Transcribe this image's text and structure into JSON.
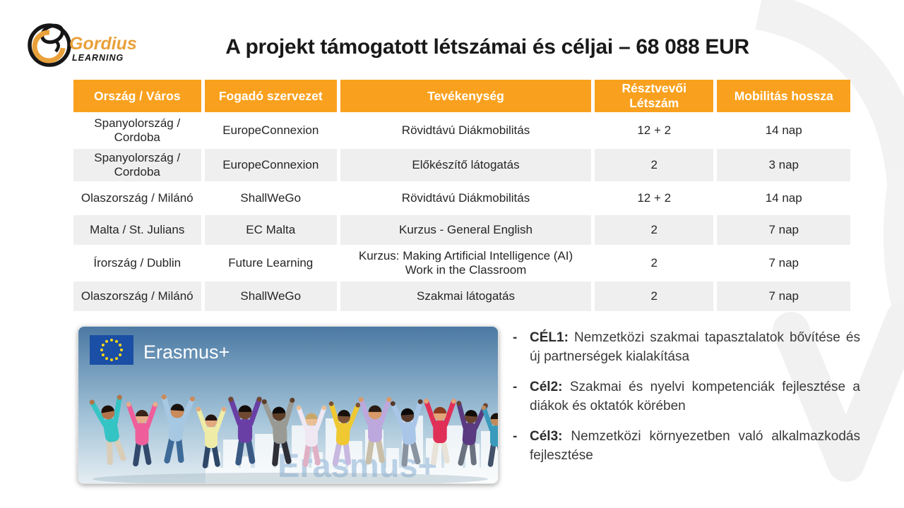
{
  "slide": {
    "title": "A projekt támogatott létszámai és céljai – 68 088 EUR"
  },
  "logo": {
    "brand": "Gordius",
    "sub": "LEARNING"
  },
  "colors": {
    "header_orange": "#F9A11E",
    "row_alt": "#EFEFEF",
    "brand_gold": "#E9A13B",
    "eu_flag_blue": "#1B4FA5",
    "eu_star_yellow": "#FFD617"
  },
  "table": {
    "headers": [
      "Ország / Város",
      "Fogadó szervezet",
      "Tevékenység",
      "Résztvevői Létszám",
      "Mobilitás hossza"
    ],
    "rows": [
      [
        "Spanyolország / Cordoba",
        "EuropeConnexion",
        "Rövidtávú Diákmobilitás",
        "12 + 2",
        "14 nap"
      ],
      [
        "Spanyolország / Cordoba",
        "EuropeConnexion",
        "Előkészítő látogatás",
        "2",
        "3 nap"
      ],
      [
        "Olaszország / Milánó",
        "ShallWeGo",
        "Rövidtávú Diákmobilitás",
        "12 + 2",
        "14 nap"
      ],
      [
        "Malta / St. Julians",
        "EC Malta",
        "Kurzus - General English",
        "2",
        "7 nap"
      ],
      [
        "Írország / Dublin",
        "Future Learning",
        "Kurzus: Making Artificial Intelligence (AI) Work in the Classroom",
        "2",
        "7 nap"
      ],
      [
        "Olaszország / Milánó",
        "ShallWeGo",
        "Szakmai látogatás",
        "2",
        "7 nap"
      ]
    ]
  },
  "goals": {
    "bullet": "-",
    "items": [
      {
        "label": "CÉL1:",
        "text": "Nemzetközi szakmai tapasztalatok bővítése és új partnerségek kialakítása"
      },
      {
        "label": "Cél2:",
        "text": "Szakmai és nyelvi kompetenciák fejlesztése a diákok és oktatók körében"
      },
      {
        "label": "Cél3:",
        "text": "Nemzetközi környezetben való alkalmazkodás fejlesztése"
      }
    ]
  },
  "image": {
    "flag_label": "Erasmus+",
    "watermark": "Erasmus+"
  }
}
